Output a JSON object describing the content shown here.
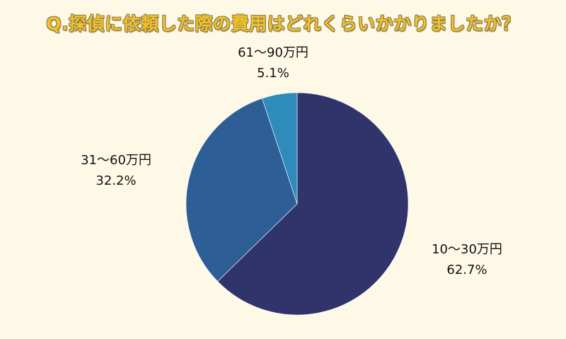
{
  "title": "Q.探偵に依頼した際の費用はどれくらいかかりましたか？",
  "colors": {
    "background": "#fef9e7",
    "title_fill": "#f2c12e",
    "title_outline": "#8a7a45",
    "label_text": "#111111"
  },
  "labels": [
    {
      "category": "10〜30万円",
      "percent": "62.7%"
    },
    {
      "category": "31〜60万円",
      "percent": "32.2%"
    },
    {
      "category": "61〜90万円",
      "percent": "5.1%"
    }
  ],
  "chart_data": {
    "type": "pie",
    "title": "Q.探偵に依頼した際の費用はどれくらいかかりましたか？",
    "categories": [
      "10〜30万円",
      "31〜60万円",
      "61〜90万円"
    ],
    "values": [
      62.7,
      32.2,
      5.1
    ],
    "value_labels": [
      "62.7%",
      "32.2%",
      "5.1%"
    ],
    "colors": [
      "#30346b",
      "#2d5f96",
      "#2e8bba"
    ],
    "start_angle": "12 o'clock",
    "direction": "clockwise",
    "legend": "none (direct labels outside slices)",
    "center": [
      420,
      288
    ],
    "radius": 157
  }
}
